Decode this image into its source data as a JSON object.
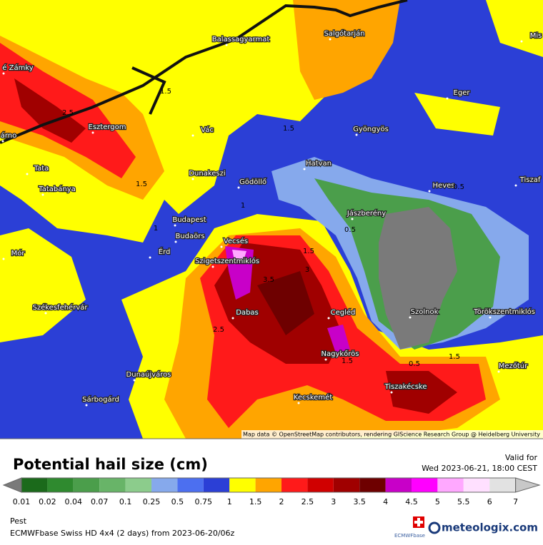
{
  "header": {
    "title": "Potential hail size (cm)",
    "valid_label": "Valid for",
    "valid_time": "Wed 2023-06-21, 18:00 CEST"
  },
  "map": {
    "cities": [
      "Balassagyarmat",
      "Salgótarján",
      "é Zámky",
      "Eger",
      "Esztergom",
      "Vác",
      "Gyöngyös",
      "árno",
      "Tata",
      "Dunakeszi",
      "Hatvan",
      "Gödöllő",
      "Heves",
      "Tiszaf",
      "Tatabánya",
      "Jászberény",
      "Budapest",
      "Budaörs",
      "Vecsés",
      "Mór",
      "Érd",
      "Szigetszentmiklós",
      "Székesfehérvár",
      "Dabas",
      "Cegléd",
      "Szolnok",
      "Törökszentmiklós",
      "Nagykőrös",
      "Mezőtúr",
      "Dunaújváros",
      "Tiszakécske",
      "Sárbogárd",
      "Kecskemét",
      "Mis"
    ],
    "contour_labels": [
      "2.5",
      "1.5",
      "1.5",
      "1.5",
      "1",
      "0.5",
      "1.5",
      "3.5",
      "2.5",
      "1.5",
      "0.5",
      "3",
      "1.5",
      "1",
      "0.5"
    ],
    "attribution": "Map data © OpenStreetMap contributors, rendering GIScience Research Group @ Heidelberg University"
  },
  "legend": {
    "labels": [
      "0.01",
      "0.02",
      "0.04",
      "0.07",
      "0.1",
      "0.25",
      "0.5",
      "0.75",
      "1",
      "1.5",
      "2",
      "2.5",
      "3",
      "3.5",
      "4",
      "4.5",
      "5",
      "5.5",
      "6",
      "7"
    ],
    "colors": [
      "#1b6a1b",
      "#2f8a2f",
      "#4b9e4b",
      "#68b468",
      "#8ccc8c",
      "#86a9ec",
      "#4c6ff0",
      "#2b3fd6",
      "#ffff00",
      "#ffa500",
      "#ff1a1a",
      "#d00000",
      "#a00000",
      "#6e0000",
      "#c800c8",
      "#ff00ff",
      "#ffa8ff",
      "#ffe0ff",
      "#e2e2e2"
    ],
    "under_color": "#7a7a7a",
    "over_color": "#c8c8c8"
  },
  "footer": {
    "region": "Pest",
    "model": "ECMWFbase Swiss HD 4x4 (2 days) from  2023-06-20/06z",
    "brand": "meteologix.com",
    "badge": "ECMWFbase"
  }
}
